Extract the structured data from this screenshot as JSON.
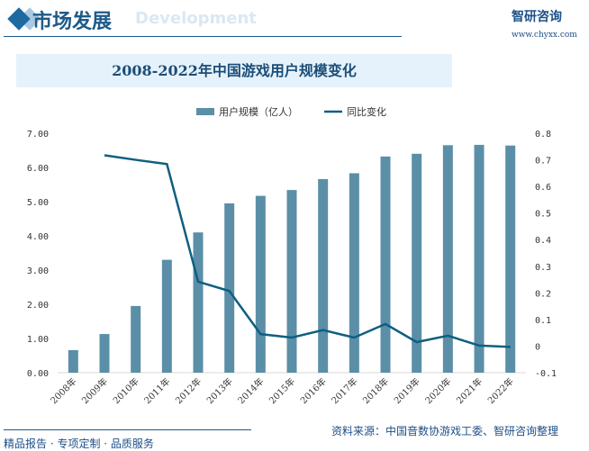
{
  "header": {
    "section_title": "市场发展",
    "section_subtitle": "Development",
    "logo_text": "智研咨询",
    "url": "www.chyxx.com"
  },
  "footer": {
    "source": "资料来源：中国音数协游戏工委、智研咨询整理",
    "slogan": "精品报告 · 专项定制 · 品质服务"
  },
  "colors": {
    "bar": "#5b8fa8",
    "line": "#0f5f80",
    "accent": "#1c5a88"
  },
  "chart_data": {
    "type": "bar+line",
    "title": "2008-2022年中国游戏用户规模变化",
    "categories": [
      "2008年",
      "2009年",
      "2010年",
      "2011年",
      "2012年",
      "2013年",
      "2014年",
      "2015年",
      "2016年",
      "2017年",
      "2018年",
      "2019年",
      "2020年",
      "2021年",
      "2022年"
    ],
    "series": [
      {
        "name": "用户规模（亿人）",
        "type": "bar",
        "axis": "left",
        "values": [
          0.66,
          1.13,
          1.95,
          3.3,
          4.1,
          4.95,
          5.17,
          5.34,
          5.66,
          5.83,
          6.32,
          6.4,
          6.65,
          6.66,
          6.64
        ]
      },
      {
        "name": "同比变化",
        "type": "line",
        "axis": "right",
        "values": [
          null,
          0.717,
          0.7,
          0.684,
          0.242,
          0.207,
          0.045,
          0.032,
          0.06,
          0.032,
          0.083,
          0.015,
          0.039,
          0.002,
          -0.003
        ]
      }
    ],
    "left_axis": {
      "ylim": [
        0,
        7
      ],
      "ticks": [
        "0.00",
        "1.00",
        "2.00",
        "3.00",
        "4.00",
        "5.00",
        "6.00",
        "7.00"
      ]
    },
    "right_axis": {
      "ylim": [
        -0.1,
        0.8
      ],
      "ticks": [
        "-0.1",
        "0",
        "0.1",
        "0.2",
        "0.3",
        "0.4",
        "0.5",
        "0.6",
        "0.7",
        "0.8"
      ]
    },
    "legend": "top",
    "grid": false
  }
}
